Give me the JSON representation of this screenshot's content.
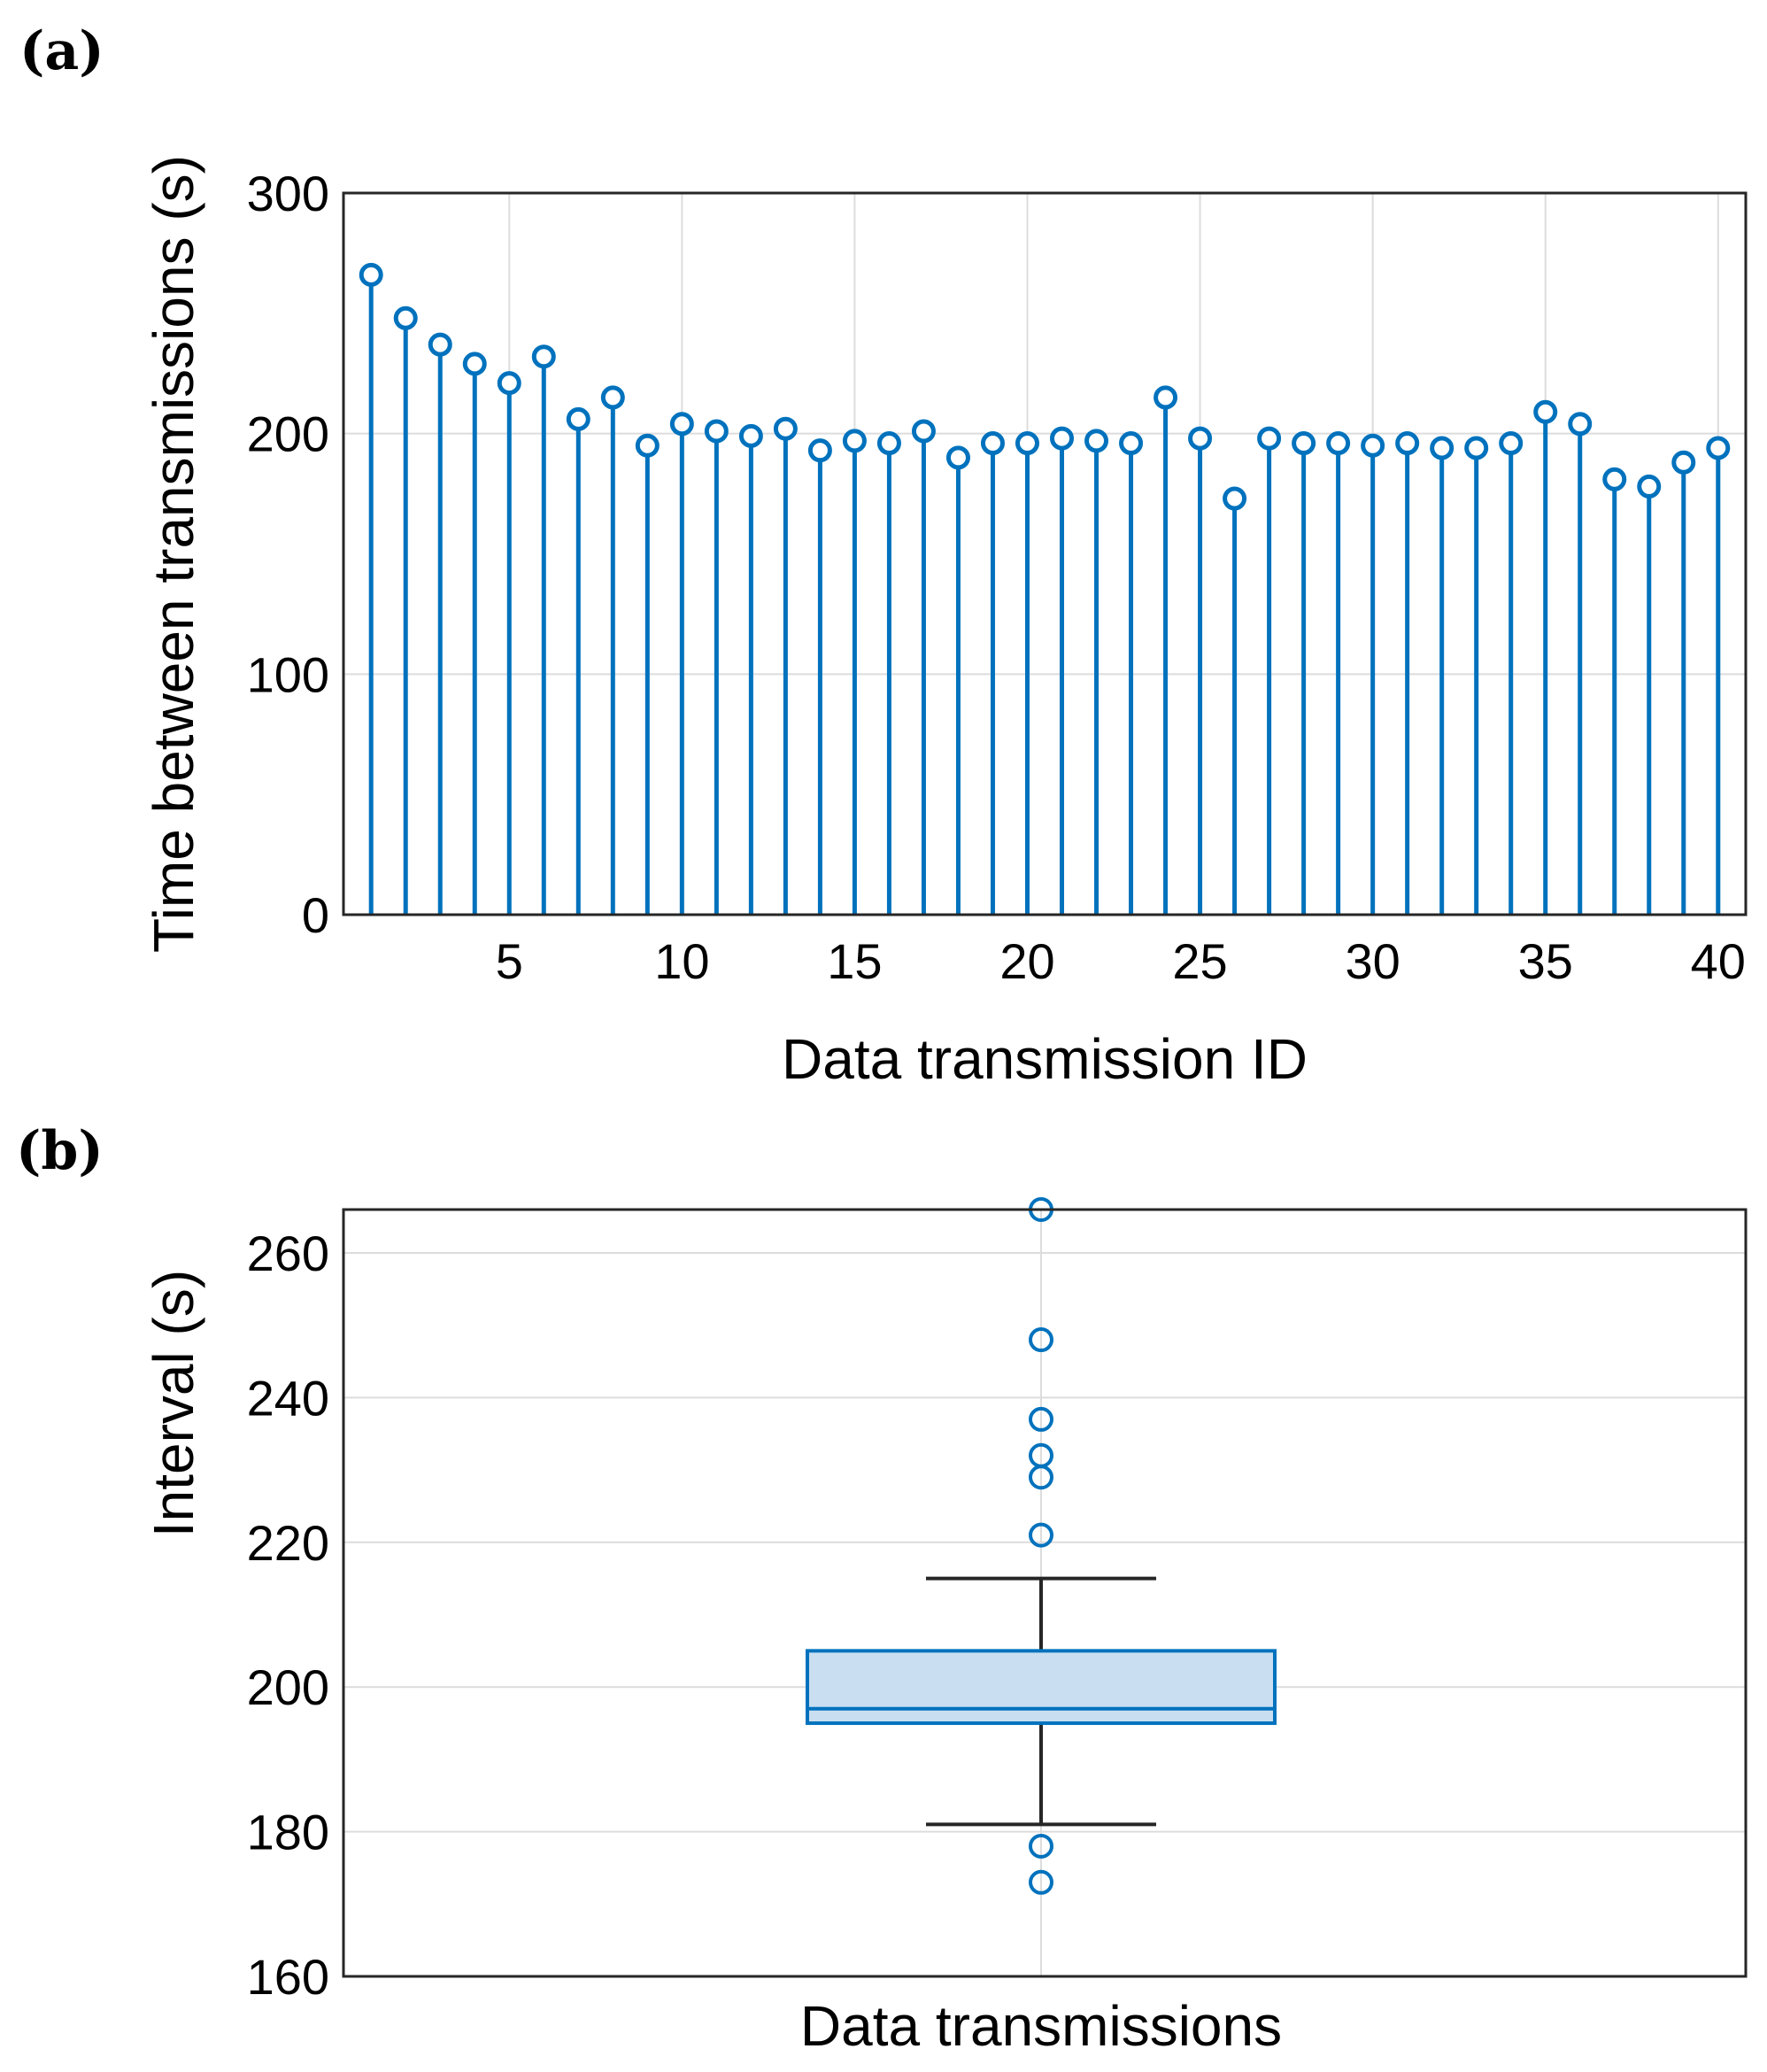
{
  "chart_data": [
    {
      "panel": "(a)",
      "type": "stem",
      "xlabel": "Data transmission ID",
      "ylabel": "Time between transmissions (s)",
      "xlim": [
        0.2,
        40.8
      ],
      "ylim": [
        0,
        300
      ],
      "xticks": [
        5,
        10,
        15,
        20,
        25,
        30,
        35,
        40
      ],
      "yticks": [
        0,
        100,
        200,
        300
      ],
      "grid": true,
      "color": "#0072BD",
      "x": [
        1,
        2,
        3,
        4,
        5,
        6,
        7,
        8,
        9,
        10,
        11,
        12,
        13,
        14,
        15,
        16,
        17,
        18,
        19,
        20,
        21,
        22,
        23,
        24,
        25,
        26,
        27,
        28,
        29,
        30,
        31,
        32,
        33,
        34,
        35,
        36,
        37,
        38,
        39,
        40
      ],
      "values": [
        266,
        248,
        237,
        229,
        221,
        232,
        206,
        215,
        195,
        204,
        201,
        199,
        202,
        193,
        197,
        196,
        201,
        190,
        196,
        196,
        198,
        197,
        196,
        215,
        198,
        173,
        198,
        196,
        196,
        195,
        196,
        194,
        194,
        196,
        209,
        204,
        181,
        178,
        188,
        194
      ]
    },
    {
      "panel": "(b)",
      "type": "box",
      "xlabel": "Data transmissions",
      "ylabel": "Interval (s)",
      "ylim": [
        160,
        266
      ],
      "yticks": [
        160,
        180,
        200,
        220,
        240,
        260
      ],
      "grid": true,
      "color": "#0072BD",
      "box": {
        "q1": 195,
        "median": 197,
        "q3": 205,
        "whisker_low": 181,
        "whisker_high": 215
      },
      "outliers": [
        266,
        248,
        237,
        232,
        229,
        221,
        178,
        173
      ]
    }
  ]
}
